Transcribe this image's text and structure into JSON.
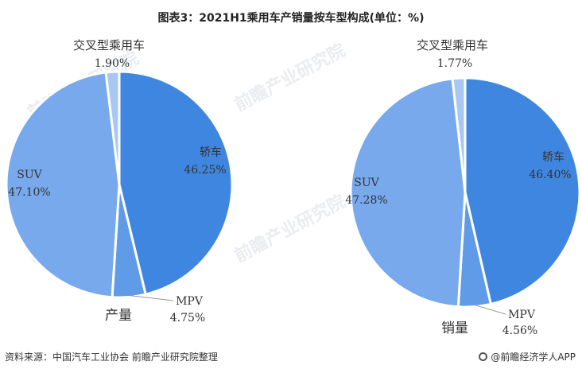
{
  "title": "图表3：2021H1乘用车产销量按车型构成(单位：%)",
  "footer": {
    "source": "资料来源：中国汽车工业协会 前瞻产业研究院整理",
    "brand": "@前瞻经济学人APP"
  },
  "watermark": "前瞻产业研究院",
  "colors": {
    "sedan": "#3f86e0",
    "mpv": "#5f9be6",
    "suv": "#77a9ec",
    "crossover": "#a9c8f1"
  },
  "chart_data": [
    {
      "type": "pie",
      "caption": "产量",
      "slices": [
        {
          "name": "轿车",
          "value": 46.25,
          "label": "46.25%"
        },
        {
          "name": "MPV",
          "value": 4.75,
          "label": "4.75%"
        },
        {
          "name": "SUV",
          "value": 47.1,
          "label": "47.10%"
        },
        {
          "name": "交叉型乘用车",
          "value": 1.9,
          "label": "1.90%"
        }
      ]
    },
    {
      "type": "pie",
      "caption": "销量",
      "slices": [
        {
          "name": "轿车",
          "value": 46.4,
          "label": "46.40%"
        },
        {
          "name": "MPV",
          "value": 4.56,
          "label": "4.56%"
        },
        {
          "name": "SUV",
          "value": 47.28,
          "label": "47.28%"
        },
        {
          "name": "交叉型乘用车",
          "value": 1.77,
          "label": "1.77%"
        }
      ]
    }
  ]
}
